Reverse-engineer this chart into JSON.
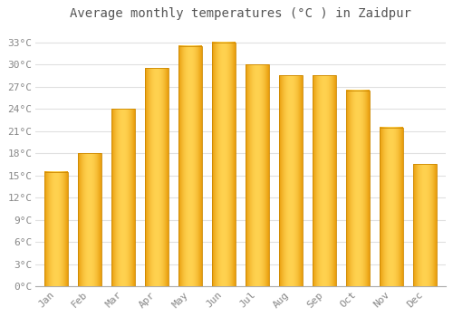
{
  "title": "Average monthly temperatures (°C ) in Zaidpur",
  "months": [
    "Jan",
    "Feb",
    "Mar",
    "Apr",
    "May",
    "Jun",
    "Jul",
    "Aug",
    "Sep",
    "Oct",
    "Nov",
    "Dec"
  ],
  "values": [
    15.5,
    18.0,
    24.0,
    29.5,
    32.5,
    33.0,
    30.0,
    28.5,
    28.5,
    26.5,
    21.5,
    16.5
  ],
  "bar_color_center": "#FFD060",
  "bar_color_edge_top": "#E89000",
  "bar_color_left": "#E8A000",
  "bar_color_right": "#E8A000",
  "bar_outline_color": "#CC8800",
  "ylim": [
    0,
    35
  ],
  "yticks": [
    0,
    3,
    6,
    9,
    12,
    15,
    18,
    21,
    24,
    27,
    30,
    33
  ],
  "ytick_labels": [
    "0°C",
    "3°C",
    "6°C",
    "9°C",
    "12°C",
    "15°C",
    "18°C",
    "21°C",
    "24°C",
    "27°C",
    "30°C",
    "33°C"
  ],
  "background_color": "#FFFFFF",
  "grid_color": "#E0E0E0",
  "font_color": "#888888",
  "title_fontsize": 10,
  "tick_fontsize": 8
}
